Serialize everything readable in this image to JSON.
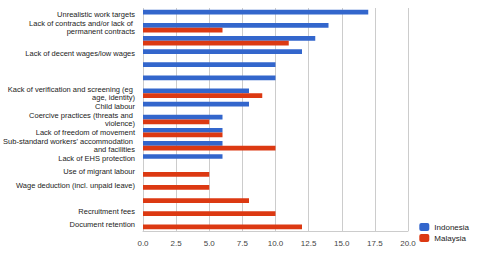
{
  "chart_data": {
    "type": "bar",
    "orientation": "horizontal",
    "categories": [
      "Unrealistic work targets",
      "Lack of contracts and/or lack of permanent contracts",
      null,
      "Lack of decent wages/low wages",
      null,
      null,
      "Kack of verification and screening (eg age, identity)",
      "Child labour",
      "Coercive practices (threats and violence)",
      "Lack of freedom of movement",
      "Sub-standard workers' accommodation and facilities",
      "Lack of EHS protection",
      "Use of migrant labour",
      "Wage deduction (incl. unpaid leave)",
      null,
      "Recruitment fees",
      "Document retention"
    ],
    "series": [
      {
        "name": "Indonesia",
        "color": "#3366cc",
        "values": [
          17,
          14,
          13,
          12,
          10,
          10,
          8,
          8,
          6,
          6,
          6,
          6,
          null,
          null,
          null,
          null,
          null
        ]
      },
      {
        "name": "Malaysia",
        "color": "#dc3912",
        "values": [
          null,
          6,
          11,
          null,
          null,
          null,
          9,
          null,
          5,
          6,
          10,
          null,
          5,
          5,
          8,
          10,
          12
        ]
      }
    ],
    "xlim": [
      0,
      20
    ],
    "xticks": [
      {
        "value": 0,
        "label": "0.0"
      },
      {
        "value": 2.5,
        "label": "2.5"
      },
      {
        "value": 5,
        "label": "5.0"
      },
      {
        "value": 7.5,
        "label": "7.5"
      },
      {
        "value": 10,
        "label": "10.0"
      },
      {
        "value": 12.5,
        "label": "12.5"
      },
      {
        "value": 15,
        "label": "15.0"
      },
      {
        "value": 17.5,
        "label": "17.5"
      },
      {
        "value": 20,
        "label": "20.0"
      }
    ],
    "grid": true,
    "legend": "bottom-right"
  }
}
